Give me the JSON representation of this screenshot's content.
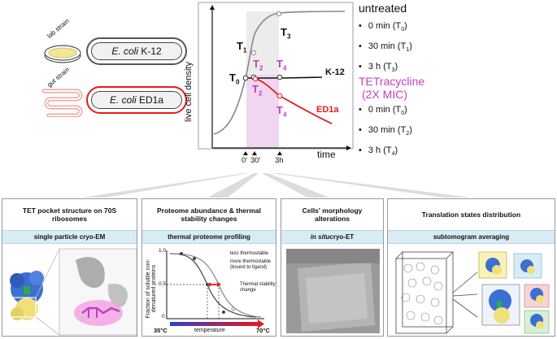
{
  "strains": {
    "lab": {
      "tag": "lab strain",
      "name_italic": "E. coli",
      "name_rest": " K-12",
      "color": "#555555"
    },
    "gut": {
      "tag": "gut strain",
      "name_italic": "E. coli",
      "name_rest": " ED1a",
      "color": "#e8191c"
    }
  },
  "growth_plot": {
    "ylabel": "live cell density",
    "xlabel": "time",
    "ticks": [
      "0'",
      "30'",
      "3h"
    ],
    "labels": {
      "T0": "T",
      "T0_sub": "0",
      "T1": "T",
      "T1_sub": "1",
      "T2": "T",
      "T2_sub": "2",
      "T3": "T",
      "T3_sub": "3",
      "T4": "T",
      "T4_sub": "4"
    },
    "series": {
      "k12": "K-12",
      "ed1a": "ED1a"
    },
    "colors": {
      "untreated": "#888888",
      "k12": "#111111",
      "ed1a": "#e8191c",
      "tet": "#c23fc0",
      "shade": "#f0d6f0"
    }
  },
  "legend": {
    "untreated": {
      "title": "untreated",
      "items": [
        [
          "0 min (T",
          "0",
          ")"
        ],
        [
          "30 min (T",
          "1",
          ")"
        ],
        [
          "3 h (T",
          "3",
          ")"
        ]
      ]
    },
    "tet": {
      "title": "TETracycline",
      "subtitle": "(2X MIC)",
      "items": [
        [
          "0 min (T",
          "0",
          ")"
        ],
        [
          "30 min (T",
          "2",
          ")"
        ],
        [
          "3 h (T",
          "4",
          ")"
        ]
      ]
    }
  },
  "panels": [
    {
      "title": "TET pocket structure on 70S ribosomes",
      "method": "single particle cryo-EM"
    },
    {
      "title": "Proteome abundance & thermal stability changes",
      "method": "thermal proteome profiling"
    },
    {
      "title": "Cells' morphology alterations",
      "method_italic": "in situ",
      "method_rest": " cryo-ET"
    },
    {
      "title": "Translation states distribution",
      "method": "subtomogram averaging"
    }
  ],
  "tpp_plot": {
    "ylabel": "Fraction of soluble non-denatured proteins",
    "xlabel": "temperature",
    "xmin_label": "35°C",
    "xmax_label": "70°C",
    "yticks": [
      "0",
      "0.5",
      "1.0"
    ],
    "legend": [
      "less thermostable",
      "more thermostable (bound to ligand)"
    ],
    "annotation": "Thermal stability change"
  }
}
